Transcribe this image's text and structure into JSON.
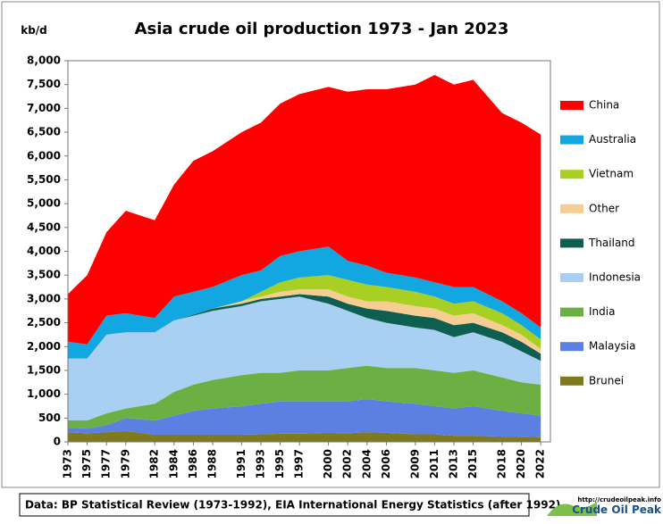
{
  "chart_data": {
    "type": "stacked_area",
    "title": "Asia crude oil production 1973 - Jan 2023",
    "y_unit": "kb/d",
    "source": "Data:  BP Statistical  Review (1973-1992), EIA International  Energy Statistics  (after 1992)",
    "logo_url": "http://crudeoilpeak.info",
    "logo_name": "Crude Oil Peak",
    "x": [
      1973,
      1975,
      1977,
      1979,
      1982,
      1984,
      1986,
      1988,
      1991,
      1993,
      1995,
      1997,
      2000,
      2002,
      2004,
      2006,
      2009,
      2011,
      2013,
      2015,
      2018,
      2020,
      2022
    ],
    "xlim": [
      1973,
      2023
    ],
    "xticks": [
      1973,
      1975,
      1977,
      1979,
      1982,
      1984,
      1986,
      1988,
      1991,
      1993,
      1995,
      1997,
      2000,
      2002,
      2004,
      2006,
      2009,
      2011,
      2013,
      2015,
      2018,
      2020,
      2022
    ],
    "ylim": [
      0,
      8000
    ],
    "yticks": [
      0,
      500,
      {
        "value": 1000,
        "label": "1,000"
      },
      {
        "value": 1500,
        "label": "1,500"
      },
      {
        "value": 2000,
        "label": "2,000"
      },
      {
        "value": 2500,
        "label": "2,500"
      },
      {
        "value": 3000,
        "label": "3,000"
      },
      {
        "value": 3500,
        "label": "3,500"
      },
      {
        "value": 4000,
        "label": "4,000"
      },
      {
        "value": 4500,
        "label": "4,500"
      },
      {
        "value": 5000,
        "label": "5,000"
      },
      {
        "value": 5500,
        "label": "5,500"
      },
      {
        "value": 6000,
        "label": "6,000"
      },
      {
        "value": 6500,
        "label": "6,500"
      },
      {
        "value": 7000,
        "label": "7,000"
      },
      {
        "value": 7500,
        "label": "7,500"
      },
      {
        "value": 8000,
        "label": "8,000"
      }
    ],
    "legend": "right",
    "series": [
      {
        "name": "Brunei",
        "color": "#7f7a1e",
        "values": [
          200,
          180,
          200,
          230,
          150,
          150,
          150,
          150,
          150,
          160,
          170,
          170,
          190,
          180,
          200,
          190,
          160,
          160,
          130,
          130,
          110,
          110,
          100
        ]
      },
      {
        "name": "Malaysia",
        "color": "#5b80e2",
        "values": [
          100,
          100,
          150,
          270,
          300,
          400,
          500,
          550,
          600,
          640,
          680,
          680,
          660,
          670,
          700,
          660,
          640,
          590,
          570,
          620,
          540,
          490,
          450
        ]
      },
      {
        "name": "India",
        "color": "#6cb043",
        "values": [
          150,
          170,
          250,
          200,
          350,
          500,
          550,
          600,
          650,
          650,
          600,
          650,
          650,
          700,
          700,
          700,
          750,
          750,
          750,
          750,
          700,
          650,
          650
        ]
      },
      {
        "name": "Indonesia",
        "color": "#a9d0f2",
        "values": [
          1300,
          1300,
          1650,
          1600,
          1500,
          1500,
          1450,
          1450,
          1450,
          1500,
          1550,
          1550,
          1400,
          1200,
          1000,
          950,
          850,
          850,
          750,
          800,
          750,
          650,
          500
        ]
      },
      {
        "name": "Thailand",
        "color": "#0e5e52",
        "values": [
          0,
          0,
          0,
          0,
          0,
          0,
          20,
          50,
          50,
          50,
          50,
          50,
          150,
          150,
          200,
          250,
          250,
          250,
          250,
          200,
          200,
          200,
          150
        ]
      },
      {
        "name": "Other",
        "color": "#f6cd92",
        "values": [
          0,
          0,
          0,
          0,
          0,
          0,
          0,
          0,
          50,
          50,
          100,
          100,
          150,
          150,
          150,
          200,
          200,
          200,
          200,
          200,
          150,
          150,
          100
        ]
      },
      {
        "name": "Vietnam",
        "color": "#a8d024",
        "values": [
          0,
          0,
          0,
          0,
          0,
          0,
          0,
          0,
          0,
          100,
          200,
          250,
          300,
          350,
          350,
          300,
          300,
          250,
          250,
          250,
          250,
          200,
          200
        ]
      },
      {
        "name": "Australia",
        "color": "#12a7e0",
        "values": [
          350,
          300,
          400,
          400,
          300,
          500,
          480,
          450,
          550,
          450,
          550,
          550,
          600,
          400,
          400,
          300,
          300,
          300,
          350,
          300,
          250,
          250,
          250
        ]
      },
      {
        "name": "China",
        "color": "#ff0000",
        "values": [
          1000,
          1450,
          1750,
          2150,
          2050,
          2350,
          2750,
          2850,
          3000,
          3100,
          3200,
          3300,
          3350,
          3550,
          3700,
          3850,
          4050,
          4350,
          4250,
          4350,
          3950,
          4000,
          4050
        ]
      }
    ]
  }
}
